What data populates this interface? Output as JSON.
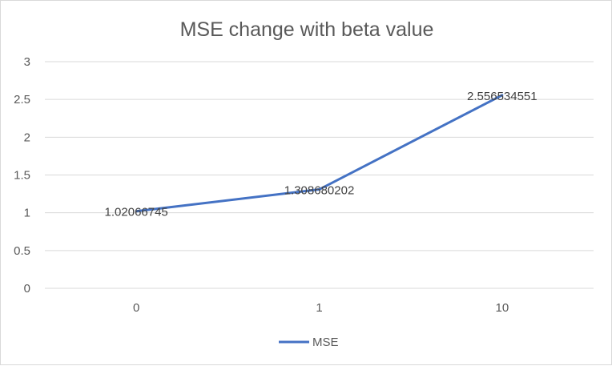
{
  "chart_data": {
    "type": "line",
    "title": "MSE change with beta value",
    "xlabel": "",
    "ylabel": "",
    "categories": [
      "0",
      "1",
      "10"
    ],
    "series": [
      {
        "name": "MSE",
        "values": [
          1.02066745,
          1.308680202,
          2.556534551
        ],
        "labels": [
          "1.02066745",
          "1.308680202",
          "2.556534551"
        ],
        "color": "#4472c4"
      }
    ],
    "ylim": [
      0,
      3
    ],
    "yticks": [
      "0",
      "0.5",
      "1",
      "1.5",
      "2",
      "2.5",
      "3"
    ],
    "grid": true,
    "legend": "bottom",
    "colors": {
      "gridline": "#d9d9d9",
      "text": "#595959",
      "line": "#4472c4"
    }
  }
}
